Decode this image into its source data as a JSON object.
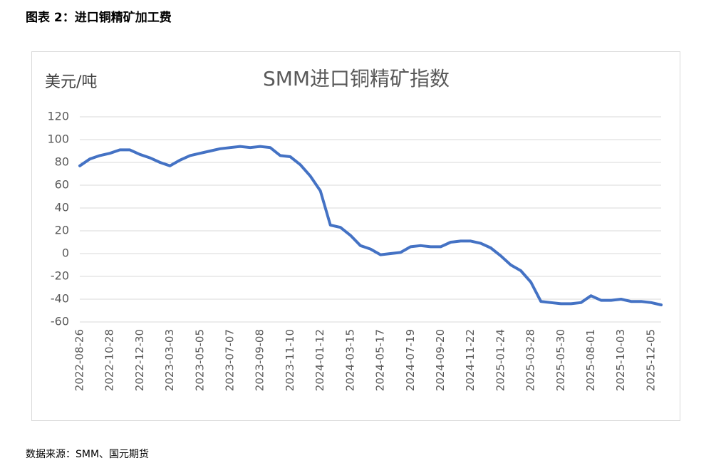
{
  "header": {
    "title": "图表 2：进口铜精矿加工费"
  },
  "chart_data": {
    "type": "line",
    "title": "SMM进口铜精矿指数",
    "ylabel": "美元/吨",
    "categories": [
      "2022-08-26",
      null,
      null,
      "2022-10-28",
      null,
      null,
      "2022-12-30",
      null,
      null,
      "2023-03-03",
      null,
      null,
      "2023-05-05",
      null,
      null,
      "2023-07-07",
      null,
      null,
      "2023-09-08",
      null,
      null,
      "2023-11-10",
      null,
      null,
      "2024-01-12",
      null,
      null,
      "2024-03-15",
      null,
      null,
      "2024-05-17",
      null,
      null,
      "2024-07-19",
      null,
      null,
      "2024-09-20",
      null,
      null,
      "2024-11-22",
      null,
      null,
      "2025-01-24",
      null,
      null,
      "2025-03-28",
      null,
      null,
      "2025-05-30",
      null,
      null,
      "2025-08-01",
      null,
      null,
      "2025-10-03",
      null,
      null,
      "2025-12-05",
      null
    ],
    "values": [
      77,
      83,
      86,
      88,
      91,
      91,
      87,
      84,
      80,
      77,
      82,
      86,
      88,
      90,
      92,
      93,
      94,
      93,
      94,
      93,
      86,
      85,
      78,
      68,
      55,
      25,
      23,
      16,
      7,
      4,
      -1,
      0,
      1,
      6,
      7,
      6,
      6,
      10,
      11,
      11,
      9,
      5,
      -2,
      -10,
      -15,
      -25,
      -42,
      -43,
      -44,
      -44,
      -43,
      -37,
      -41,
      -41,
      -40,
      -42,
      -42,
      -43,
      -45
    ],
    "color": "#4472c4",
    "ylim": [
      -60,
      120
    ],
    "yticks": [
      -60,
      -40,
      -20,
      0,
      20,
      40,
      60,
      80,
      100,
      120
    ],
    "grid": true
  },
  "footer": {
    "source": "数据来源：SMM、国元期货"
  }
}
